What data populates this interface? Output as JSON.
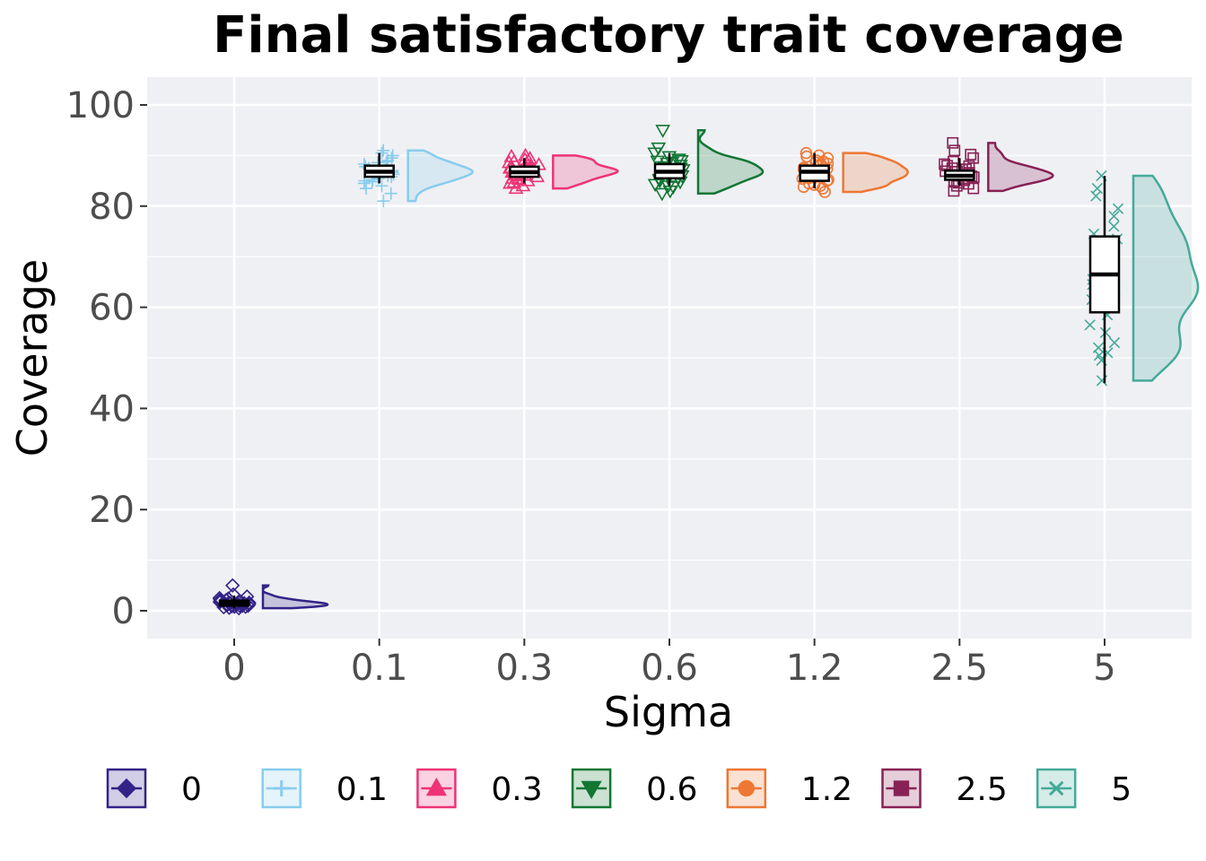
{
  "chart_data": {
    "type": "raincloud",
    "title": "Final satisfactory trait coverage",
    "xlabel": "Sigma",
    "ylabel": "Coverage",
    "categories": [
      "0",
      "0.1",
      "0.3",
      "0.6",
      "1.2",
      "2.5",
      "5"
    ],
    "ylim": [
      -5.5,
      105.5
    ],
    "yticks": [
      0,
      20,
      40,
      60,
      80,
      100
    ],
    "grid": true,
    "legend_position": "bottom",
    "series": [
      {
        "name": "0",
        "color": "#332288",
        "marker": "diamond",
        "box": {
          "min": 0.5,
          "q1": 1.0,
          "median": 1.5,
          "q3": 2.0,
          "max": 3.0
        },
        "points": [
          5.0,
          3.2,
          2.8,
          2.5,
          2.2,
          2.0,
          1.9,
          1.8,
          1.7,
          1.6,
          1.5,
          1.5,
          1.4,
          1.3,
          1.2,
          1.1,
          1.0,
          1.0,
          0.9,
          0.8,
          0.7,
          0.6,
          0.5,
          1.2,
          1.6,
          2.1,
          0.8,
          1.4,
          2.4,
          1.0
        ]
      },
      {
        "name": "0.1",
        "color": "#88ccee",
        "marker": "plus",
        "box": {
          "min": 84.5,
          "q1": 85.8,
          "median": 86.8,
          "q3": 88.0,
          "max": 90.5
        },
        "points": [
          81.0,
          82.5,
          83.5,
          84.0,
          84.5,
          85.0,
          85.5,
          85.8,
          86.0,
          86.3,
          86.5,
          86.7,
          86.9,
          87.0,
          87.2,
          87.5,
          87.8,
          88.0,
          88.3,
          88.6,
          89.0,
          89.5,
          90.0,
          90.5,
          91.0,
          86.2,
          87.4,
          85.2,
          88.8,
          84.8
        ]
      },
      {
        "name": "0.3",
        "color": "#ee3377",
        "marker": "triangle-up",
        "box": {
          "min": 84.5,
          "q1": 85.8,
          "median": 86.7,
          "q3": 87.8,
          "max": 89.5
        },
        "points": [
          83.5,
          84.0,
          84.5,
          85.0,
          85.5,
          85.8,
          86.0,
          86.2,
          86.5,
          86.7,
          86.9,
          87.1,
          87.3,
          87.6,
          87.9,
          88.2,
          88.6,
          89.0,
          89.4,
          89.8,
          90.0,
          85.3,
          86.8,
          87.5,
          88.8,
          84.7,
          86.1,
          87.0,
          88.0,
          89.2
        ]
      },
      {
        "name": "0.6",
        "color": "#117733",
        "marker": "triangle-down",
        "box": {
          "min": 84.0,
          "q1": 85.5,
          "median": 86.8,
          "q3": 88.3,
          "max": 90.5
        },
        "points": [
          82.5,
          83.0,
          83.8,
          84.3,
          84.8,
          85.3,
          85.7,
          86.0,
          86.3,
          86.6,
          86.9,
          87.2,
          87.5,
          87.8,
          88.1,
          88.5,
          88.9,
          89.3,
          89.8,
          90.5,
          91.5,
          95.0,
          85.0,
          86.4,
          87.7,
          88.7,
          84.0,
          85.9,
          87.0,
          89.0
        ]
      },
      {
        "name": "1.2",
        "color": "#ee7733",
        "marker": "circle",
        "box": {
          "min": 83.5,
          "q1": 85.0,
          "median": 86.8,
          "q3": 88.0,
          "max": 90.5
        },
        "points": [
          82.8,
          83.5,
          84.0,
          84.5,
          85.0,
          85.4,
          85.8,
          86.1,
          86.4,
          86.7,
          87.0,
          87.3,
          87.6,
          87.9,
          88.2,
          88.6,
          89.0,
          89.5,
          90.0,
          90.5,
          84.2,
          85.6,
          86.9,
          88.4,
          89.8,
          83.8,
          86.2,
          87.4,
          88.8,
          85.2
        ]
      },
      {
        "name": "2.5",
        "color": "#882255",
        "marker": "square",
        "box": {
          "min": 84.0,
          "q1": 85.2,
          "median": 86.0,
          "q3": 87.0,
          "max": 89.5
        },
        "points": [
          83.0,
          83.5,
          84.0,
          84.4,
          84.8,
          85.1,
          85.4,
          85.7,
          86.0,
          86.2,
          86.4,
          86.6,
          86.9,
          87.2,
          87.5,
          87.9,
          88.3,
          88.8,
          89.5,
          90.2,
          91.0,
          92.5,
          85.0,
          86.1,
          87.3,
          84.6,
          85.9,
          86.8,
          88.0,
          85.5
        ]
      },
      {
        "name": "5",
        "color": "#44aa99",
        "marker": "x",
        "box": {
          "min": 45.0,
          "q1": 59.0,
          "median": 66.5,
          "q3": 74.0,
          "max": 86.0
        },
        "points": [
          45.5,
          49.5,
          50.5,
          51.0,
          52.0,
          53.0,
          55.0,
          56.5,
          58.5,
          60.5,
          61.5,
          62.0,
          62.5,
          63.5,
          64.5,
          65.5,
          66.5,
          67.5,
          69.0,
          70.5,
          71.5,
          72.5,
          73.5,
          74.5,
          76.0,
          78.0,
          79.5,
          82.0,
          83.5,
          86.0
        ]
      }
    ]
  }
}
